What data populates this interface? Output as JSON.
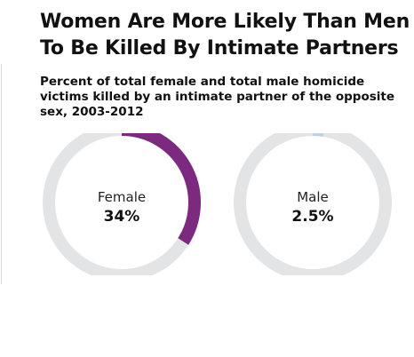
{
  "title": "Women Are More Likely Than Men To Be Killed By Intimate Partners",
  "subtitle": "Percent of total female and total male homicide victims killed by an intimate partner of the opposite sex, 2003-2012",
  "colors": {
    "track": "#e3e4e6",
    "female": "#7b2a7f",
    "male": "#b8d3ea"
  },
  "chart_data": {
    "type": "pie",
    "style": "donut",
    "title": "Women Are More Likely Than Men To Be Killed By Intimate Partners",
    "subtitle": "Percent of total female and total male homicide victims killed by an intimate partner of the opposite sex, 2003-2012",
    "series": [
      {
        "name": "Female",
        "value": 34,
        "value_label": "34%",
        "color": "#7b2a7f"
      },
      {
        "name": "Male",
        "value": 2.5,
        "value_label": "2.5%",
        "color": "#b8d3ea"
      }
    ],
    "max": 100
  }
}
